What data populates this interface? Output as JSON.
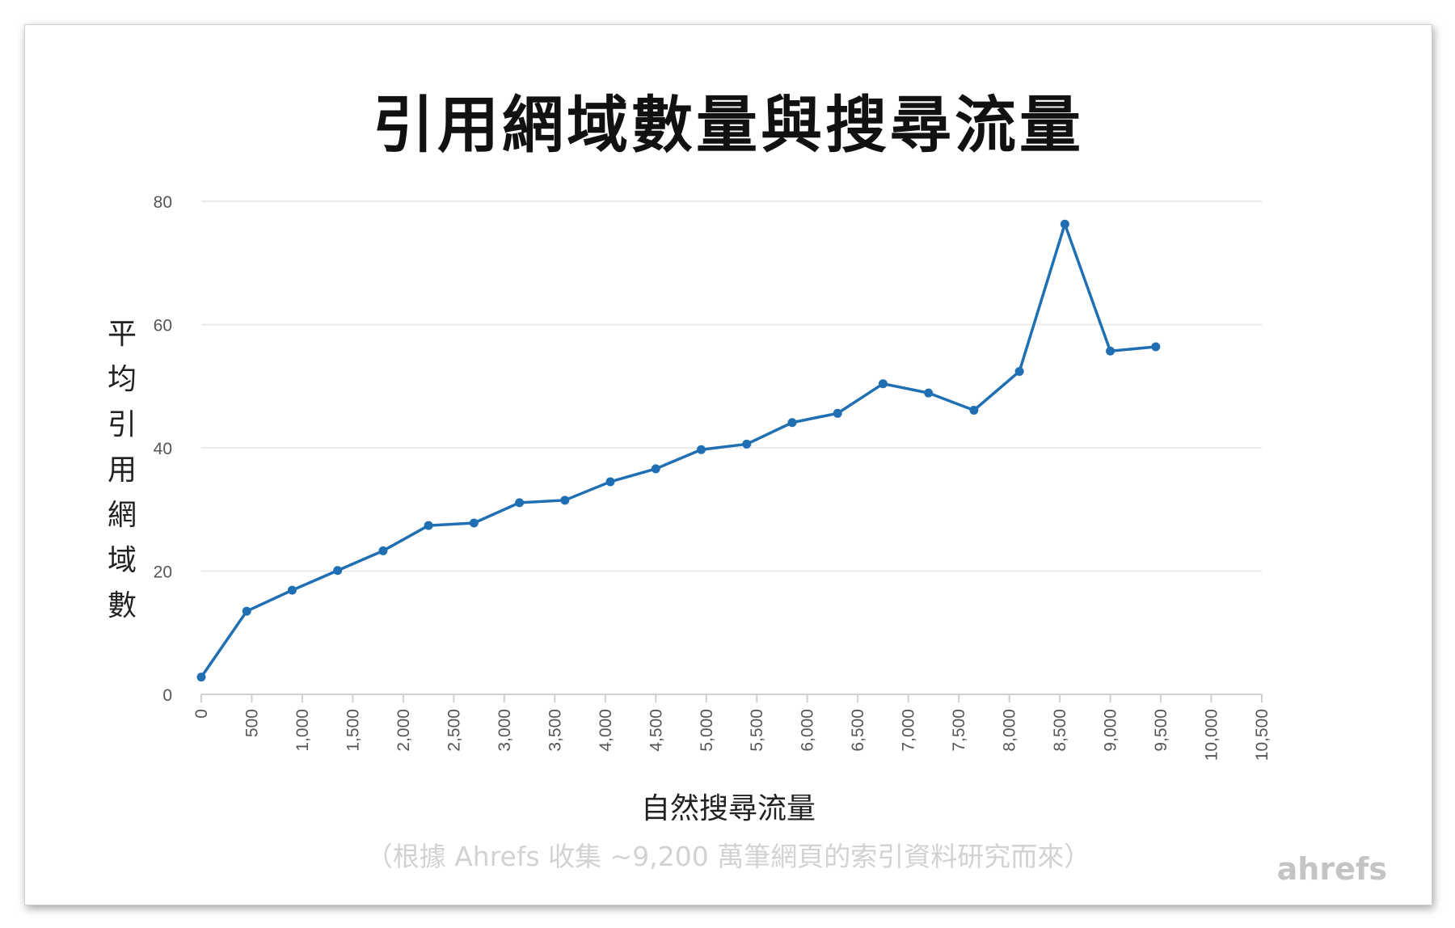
{
  "chart_data": {
    "type": "line",
    "title": "引用網域數量與搜尋流量",
    "xlabel": "自然搜尋流量",
    "ylabel": "平均引用網域數",
    "note": "（根據 Ahrefs 收集 ~9,200 萬筆網頁的索引資料研究而來）",
    "x_ticks": [
      "0",
      "500",
      "1,000",
      "1,500",
      "2,000",
      "2,500",
      "3,000",
      "3,500",
      "4,000",
      "4,500",
      "5,000",
      "5,500",
      "6,000",
      "6,500",
      "7,000",
      "7,500",
      "8,000",
      "8,500",
      "9,000",
      "9,500",
      "10,000",
      "10,500"
    ],
    "y_ticks": [
      0,
      20,
      40,
      60,
      80
    ],
    "xlim": [
      0,
      10500
    ],
    "ylim": [
      0,
      80
    ],
    "grid": true,
    "legend": "none",
    "series": [
      {
        "color": "#1f6fb2",
        "x": [
          0,
          450,
          900,
          1350,
          1800,
          2250,
          2700,
          3150,
          3600,
          4050,
          4500,
          4950,
          5400,
          5850,
          6300,
          6750,
          7200,
          7650,
          8100,
          8550,
          9000,
          9450
        ],
        "y": [
          2.8,
          13.5,
          16.9,
          20.1,
          23.3,
          27.4,
          27.8,
          31.1,
          31.5,
          34.5,
          36.6,
          39.7,
          40.6,
          44.1,
          45.6,
          50.4,
          48.9,
          46.1,
          52.4,
          76.3,
          55.7,
          56.4
        ]
      }
    ]
  },
  "branding": {
    "logo": "ahrefs"
  }
}
